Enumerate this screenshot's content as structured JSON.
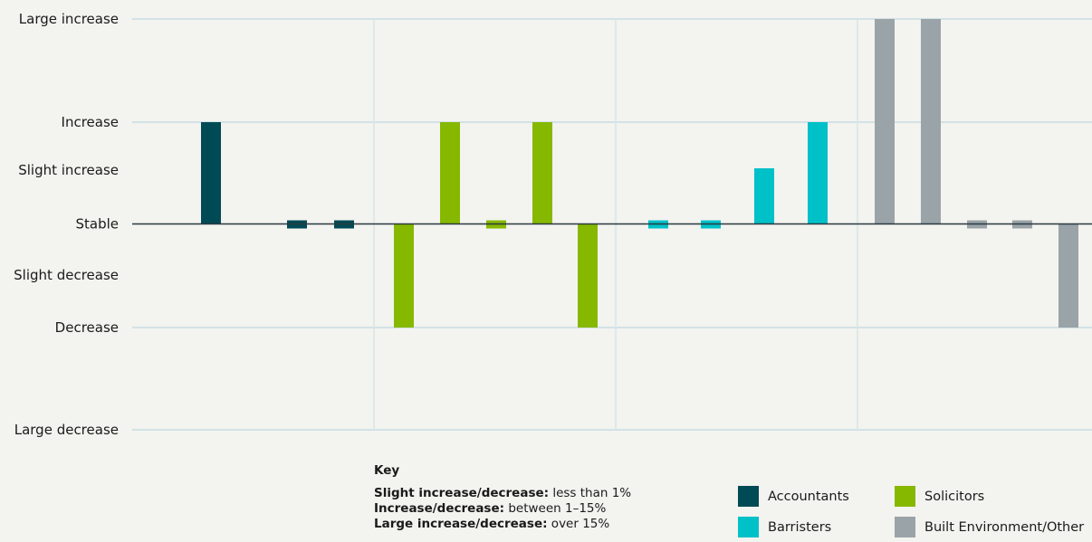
{
  "chart_data": {
    "type": "bar",
    "y_scale": "ordinal",
    "ylim": [
      -3,
      3
    ],
    "yticks": [
      {
        "value": 3,
        "label": "Large increase"
      },
      {
        "value": 2,
        "label": "Increase"
      },
      {
        "value": 1.5,
        "label": "Slight increase"
      },
      {
        "value": 0,
        "label": "Stable"
      },
      {
        "value": -1,
        "label": "Slight decrease"
      },
      {
        "value": -2,
        "label": "Decrease"
      },
      {
        "value": -4,
        "label": "Large decrease"
      }
    ],
    "grid": true,
    "groups": [
      {
        "series": "Accountants",
        "color": "#004a55",
        "values": [
          2,
          0,
          0
        ]
      },
      {
        "series": "Solicitors",
        "color": "#86b800",
        "values": [
          -2,
          2,
          0,
          2,
          -2
        ]
      },
      {
        "series": "Barristers",
        "color": "#00c0c8",
        "values": [
          0,
          0,
          1,
          2
        ]
      },
      {
        "series": "Built Environment/Other",
        "color": "#9aa3a8",
        "values": [
          3,
          3,
          0,
          0,
          -2
        ]
      }
    ],
    "legend": [
      {
        "name": "Accountants",
        "color": "#004a55"
      },
      {
        "name": "Solicitors",
        "color": "#86b800"
      },
      {
        "name": "Barristers",
        "color": "#00c0c8"
      },
      {
        "name": "Built Environment/Other",
        "color": "#9aa3a8"
      }
    ]
  },
  "key": {
    "title": "Key",
    "lines": [
      {
        "label": "Slight increase/decrease:",
        "text": " less than 1%"
      },
      {
        "label": "Increase/decrease:",
        "text": " between 1–15%"
      },
      {
        "label": "Large increase/decrease:",
        "text": " over 15%"
      }
    ]
  }
}
